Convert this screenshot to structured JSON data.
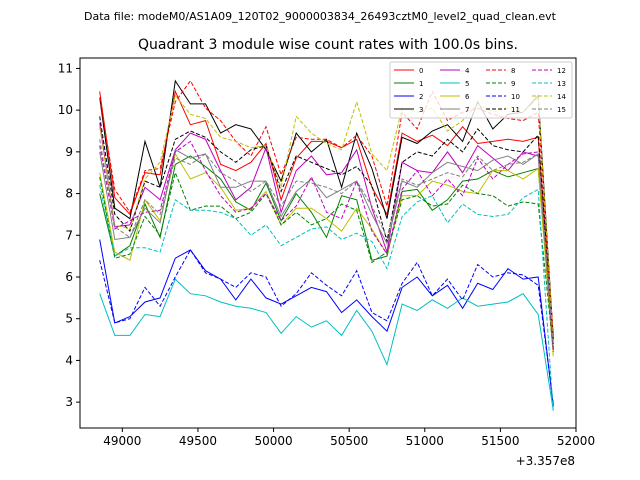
{
  "suptitle": "Data file: modeM0/AS1A09_120T02_9000003834_26493cztM0_level2_quad_clean.evt",
  "chart_data": {
    "type": "line",
    "title": "Quadrant 3 module wise count rates with 100.0s bins.",
    "xlabel": "",
    "ylabel": "",
    "x_offset_label": "+3.357e8",
    "xlim": [
      48720,
      52000
    ],
    "ylim": [
      2.38,
      11.25
    ],
    "x_ticks": [
      49000,
      49500,
      50000,
      50500,
      51000,
      51500,
      52000
    ],
    "y_ticks": [
      3,
      4,
      5,
      6,
      7,
      8,
      9,
      10,
      11
    ],
    "grid": false,
    "legend_position": "top-right",
    "x": [
      48850,
      48950,
      49050,
      49150,
      49250,
      49350,
      49450,
      49550,
      49650,
      49750,
      49850,
      49950,
      50050,
      50150,
      50250,
      50350,
      50450,
      50550,
      50650,
      50750,
      50850,
      50950,
      51050,
      51150,
      51250,
      51350,
      51450,
      51550,
      51650,
      51750,
      51850
    ],
    "series": [
      {
        "name": "0",
        "color": "#ff0000",
        "dash": false,
        "values": [
          10.45,
          7.9,
          7.5,
          8.5,
          8.45,
          10.45,
          9.65,
          9.75,
          8.7,
          8.55,
          8.75,
          9.2,
          7.85,
          8.85,
          9.25,
          9.25,
          9.1,
          9.3,
          8.15,
          7.5,
          9.45,
          9.25,
          9.4,
          9.15,
          9.6,
          9.2,
          9.25,
          9.3,
          9.25,
          9.35,
          4.6
        ]
      },
      {
        "name": "1",
        "color": "#008000",
        "dash": false,
        "values": [
          8.0,
          6.5,
          6.75,
          7.75,
          6.95,
          8.7,
          8.9,
          8.65,
          8.35,
          7.8,
          7.6,
          8.25,
          7.35,
          8.0,
          7.55,
          6.95,
          7.95,
          7.85,
          6.4,
          6.5,
          8.05,
          8.1,
          7.6,
          7.85,
          8.3,
          8.35,
          8.55,
          8.4,
          8.5,
          8.6,
          4.25
        ]
      },
      {
        "name": "2",
        "color": "#0000ff",
        "dash": false,
        "values": [
          6.9,
          4.9,
          5.05,
          5.4,
          5.5,
          6.45,
          6.65,
          6.15,
          5.95,
          5.45,
          5.95,
          5.5,
          5.35,
          5.55,
          5.75,
          5.65,
          5.15,
          5.45,
          5.05,
          4.7,
          5.75,
          6.0,
          5.55,
          5.8,
          5.25,
          5.85,
          5.7,
          6.2,
          5.95,
          6.0,
          2.9
        ]
      },
      {
        "name": "3",
        "color": "#000000",
        "dash": false,
        "values": [
          10.3,
          7.65,
          7.4,
          9.25,
          8.15,
          10.7,
          10.15,
          10.15,
          9.45,
          9.65,
          9.55,
          9.05,
          8.3,
          9.45,
          9.0,
          9.3,
          8.15,
          9.45,
          8.6,
          7.4,
          9.35,
          9.2,
          9.5,
          9.65,
          9.25,
          10.2,
          9.55,
          9.9,
          9.95,
          10.35,
          4.5
        ]
      },
      {
        "name": "4",
        "color": "#bf00bf",
        "dash": false,
        "values": [
          9.7,
          7.2,
          7.25,
          8.15,
          7.85,
          9.05,
          9.45,
          9.3,
          8.55,
          7.85,
          8.15,
          9.1,
          7.55,
          8.55,
          8.9,
          8.45,
          8.5,
          9.05,
          7.65,
          6.6,
          8.75,
          8.55,
          8.5,
          9.0,
          8.5,
          9.15,
          8.85,
          8.55,
          9.0,
          8.9,
          4.3
        ]
      },
      {
        "name": "5",
        "color": "#00bfbf",
        "dash": false,
        "values": [
          5.6,
          4.6,
          4.6,
          5.1,
          5.05,
          5.95,
          5.6,
          5.55,
          5.4,
          5.3,
          5.25,
          5.15,
          4.65,
          5.05,
          4.8,
          4.95,
          4.6,
          5.2,
          4.7,
          3.9,
          5.35,
          5.2,
          5.45,
          5.25,
          5.5,
          5.3,
          5.35,
          5.4,
          5.6,
          5.1,
          2.8
        ]
      },
      {
        "name": "6",
        "color": "#bfbf00",
        "dash": false,
        "values": [
          8.5,
          6.6,
          6.4,
          7.85,
          7.35,
          8.95,
          8.35,
          8.5,
          8.15,
          7.6,
          7.65,
          8.05,
          7.25,
          7.65,
          7.65,
          7.4,
          7.1,
          7.65,
          7.15,
          6.55,
          7.95,
          7.95,
          8.3,
          8.2,
          8.05,
          8.0,
          8.55,
          8.55,
          8.35,
          8.6,
          4.1
        ]
      },
      {
        "name": "7",
        "color": "#808080",
        "dash": false,
        "values": [
          9.0,
          6.9,
          6.95,
          7.65,
          7.3,
          9.05,
          8.85,
          8.95,
          8.15,
          8.15,
          8.3,
          8.3,
          7.45,
          8.05,
          8.35,
          7.9,
          8.1,
          8.3,
          7.5,
          6.8,
          8.3,
          8.15,
          8.5,
          8.75,
          8.65,
          8.55,
          8.8,
          8.9,
          8.7,
          8.95,
          4.3
        ]
      },
      {
        "name": "8",
        "color": "#ff0000",
        "dash": true,
        "values": [
          10.3,
          8.1,
          7.55,
          8.55,
          8.6,
          10.2,
          10.7,
          10.05,
          9.75,
          9.25,
          8.9,
          9.6,
          8.45,
          9.35,
          9.3,
          9.3,
          9.1,
          9.4,
          8.9,
          7.7,
          9.95,
          9.55,
          10.45,
          9.75,
          9.95,
          10.05,
          9.9,
          9.8,
          9.75,
          9.95,
          4.55
        ]
      },
      {
        "name": "9",
        "color": "#008000",
        "dash": true,
        "values": [
          8.4,
          6.45,
          6.55,
          7.45,
          7.0,
          8.5,
          7.6,
          7.7,
          7.7,
          7.4,
          7.55,
          8.0,
          7.25,
          7.55,
          7.25,
          7.4,
          7.75,
          7.6,
          6.35,
          6.6,
          7.85,
          7.95,
          7.7,
          7.75,
          8.2,
          8.0,
          7.95,
          7.7,
          7.8,
          7.75,
          4.25
        ]
      },
      {
        "name": "10",
        "color": "#0000ff",
        "dash": true,
        "values": [
          6.4,
          4.9,
          5.0,
          5.75,
          5.3,
          6.0,
          6.65,
          6.1,
          5.95,
          5.75,
          6.1,
          6.0,
          5.3,
          5.6,
          6.1,
          5.8,
          5.55,
          6.15,
          5.15,
          4.95,
          5.85,
          6.35,
          5.55,
          5.95,
          5.45,
          6.3,
          6.0,
          6.1,
          6.05,
          5.8,
          2.95
        ]
      },
      {
        "name": "11",
        "color": "#000000",
        "dash": true,
        "values": [
          9.85,
          7.5,
          7.1,
          8.3,
          8.15,
          9.3,
          9.5,
          9.35,
          9.0,
          8.75,
          9.05,
          9.15,
          8.05,
          8.9,
          8.75,
          8.6,
          8.45,
          8.65,
          8.2,
          6.85,
          8.75,
          9.0,
          8.9,
          9.3,
          9.0,
          9.55,
          9.15,
          9.05,
          9.0,
          9.4,
          4.4
        ]
      },
      {
        "name": "12",
        "color": "#bf00bf",
        "dash": true,
        "values": [
          9.15,
          7.15,
          7.35,
          7.55,
          7.6,
          9.0,
          9.25,
          8.55,
          7.95,
          7.55,
          7.65,
          8.0,
          7.35,
          7.7,
          8.4,
          7.55,
          7.4,
          8.3,
          7.1,
          6.55,
          8.1,
          8.55,
          7.95,
          8.35,
          7.95,
          8.85,
          8.35,
          8.7,
          8.95,
          9.0,
          4.2
        ]
      },
      {
        "name": "13",
        "color": "#00bfbf",
        "dash": true,
        "values": [
          8.2,
          6.5,
          6.7,
          6.7,
          6.6,
          7.85,
          7.6,
          7.6,
          7.55,
          7.4,
          7.0,
          7.25,
          6.75,
          6.95,
          7.15,
          7.2,
          6.9,
          7.05,
          6.85,
          6.2,
          7.45,
          7.8,
          7.95,
          7.3,
          7.75,
          7.5,
          7.45,
          7.5,
          7.9,
          8.1,
          2.75
        ]
      },
      {
        "name": "14",
        "color": "#bfbf00",
        "dash": true,
        "values": [
          9.6,
          7.25,
          7.15,
          8.35,
          8.75,
          10.35,
          9.9,
          9.8,
          9.35,
          9.25,
          9.1,
          9.15,
          8.15,
          9.85,
          9.45,
          9.2,
          9.05,
          10.2,
          8.95,
          8.55,
          10.05,
          9.95,
          10.05,
          9.5,
          9.75,
          10.15,
          9.95,
          10.05,
          9.95,
          10.3,
          4.4
        ]
      },
      {
        "name": "15",
        "color": "#808080",
        "dash": true,
        "values": [
          9.3,
          7.2,
          6.95,
          7.85,
          7.5,
          8.85,
          8.7,
          8.95,
          8.5,
          8.3,
          8.05,
          8.3,
          7.7,
          8.3,
          8.25,
          8.15,
          8.0,
          8.3,
          7.7,
          6.95,
          8.35,
          8.2,
          8.35,
          8.5,
          8.4,
          8.9,
          8.55,
          8.7,
          8.75,
          8.95,
          4.35
        ]
      }
    ]
  }
}
